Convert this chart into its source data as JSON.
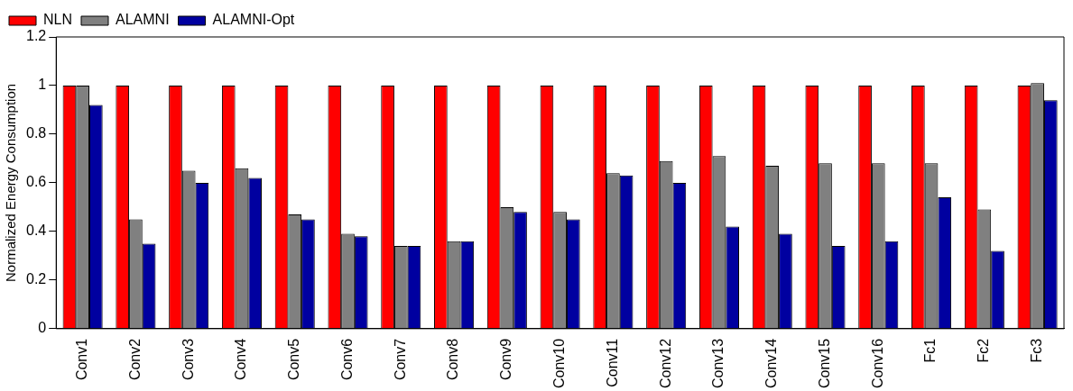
{
  "chart_data": {
    "type": "bar",
    "ylabel": "Normalized Energy Consumption",
    "categories": [
      "Conv1",
      "Conv2",
      "Conv3",
      "Conv4",
      "Conv5",
      "Conv6",
      "Conv7",
      "Conv8",
      "Conv9",
      "Conv10",
      "Conv11",
      "Conv12",
      "Conv13",
      "Conv14",
      "Conv15",
      "Conv16",
      "Fc1",
      "Fc2",
      "Fc3"
    ],
    "series": [
      {
        "name": "NLN",
        "color": "#ff0000",
        "values": [
          1,
          1,
          1,
          1,
          1,
          1,
          1,
          1,
          1,
          1,
          1,
          1,
          1,
          1,
          1,
          1,
          1,
          1,
          1
        ]
      },
      {
        "name": "ALAMNI",
        "color": "#808080",
        "values": [
          1.0,
          0.45,
          0.65,
          0.66,
          0.47,
          0.39,
          0.34,
          0.36,
          0.5,
          0.48,
          0.64,
          0.69,
          0.71,
          0.67,
          0.68,
          0.68,
          0.68,
          0.49,
          1.01
        ]
      },
      {
        "name": "ALAMNI-Opt",
        "color": "#0000a0",
        "values": [
          0.92,
          0.35,
          0.6,
          0.62,
          0.45,
          0.38,
          0.34,
          0.36,
          0.48,
          0.45,
          0.63,
          0.6,
          0.42,
          0.39,
          0.34,
          0.36,
          0.54,
          0.32,
          0.94
        ]
      }
    ],
    "ylim": [
      0,
      1.2
    ],
    "yticks": [
      0,
      0.2,
      0.4,
      0.6,
      0.8,
      1,
      1.2
    ],
    "grid": false,
    "legend": "top left"
  }
}
